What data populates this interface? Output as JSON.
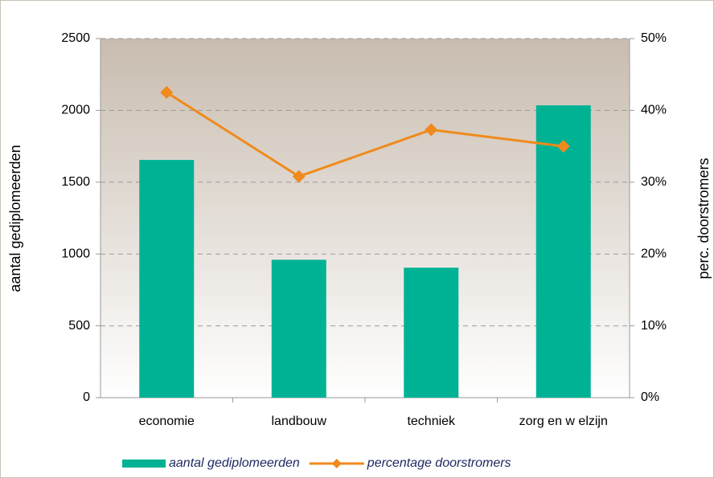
{
  "chart_data": {
    "type": "bar",
    "categories": [
      "economie",
      "landbouw",
      "techniek",
      "zorg en w elzijn"
    ],
    "series": [
      {
        "name": "aantal gediplomeerden",
        "type": "bar",
        "color": "#00b294",
        "values": [
          1655,
          960,
          905,
          2035
        ]
      },
      {
        "name": "percentage doorstromers",
        "type": "line",
        "axis": "y2",
        "color": "#f08a1c",
        "values": [
          42.5,
          30.8,
          37.3,
          35.0
        ]
      }
    ],
    "y_label": "aantal gediplomeerden",
    "y2_label": "perc. doorstromers",
    "ylim": [
      0,
      2500
    ],
    "yticks": [
      0,
      500,
      1000,
      1500,
      2000,
      2500
    ],
    "y2lim": [
      0,
      50
    ],
    "y2ticks": [
      {
        "value": 0,
        "label": "0%"
      },
      {
        "value": 10,
        "label": "10%"
      },
      {
        "value": 20,
        "label": "20%"
      },
      {
        "value": 30,
        "label": "30%"
      },
      {
        "value": 40,
        "label": "40%"
      },
      {
        "value": 50,
        "label": "50%"
      }
    ],
    "grid": true,
    "legend": "bottom"
  }
}
